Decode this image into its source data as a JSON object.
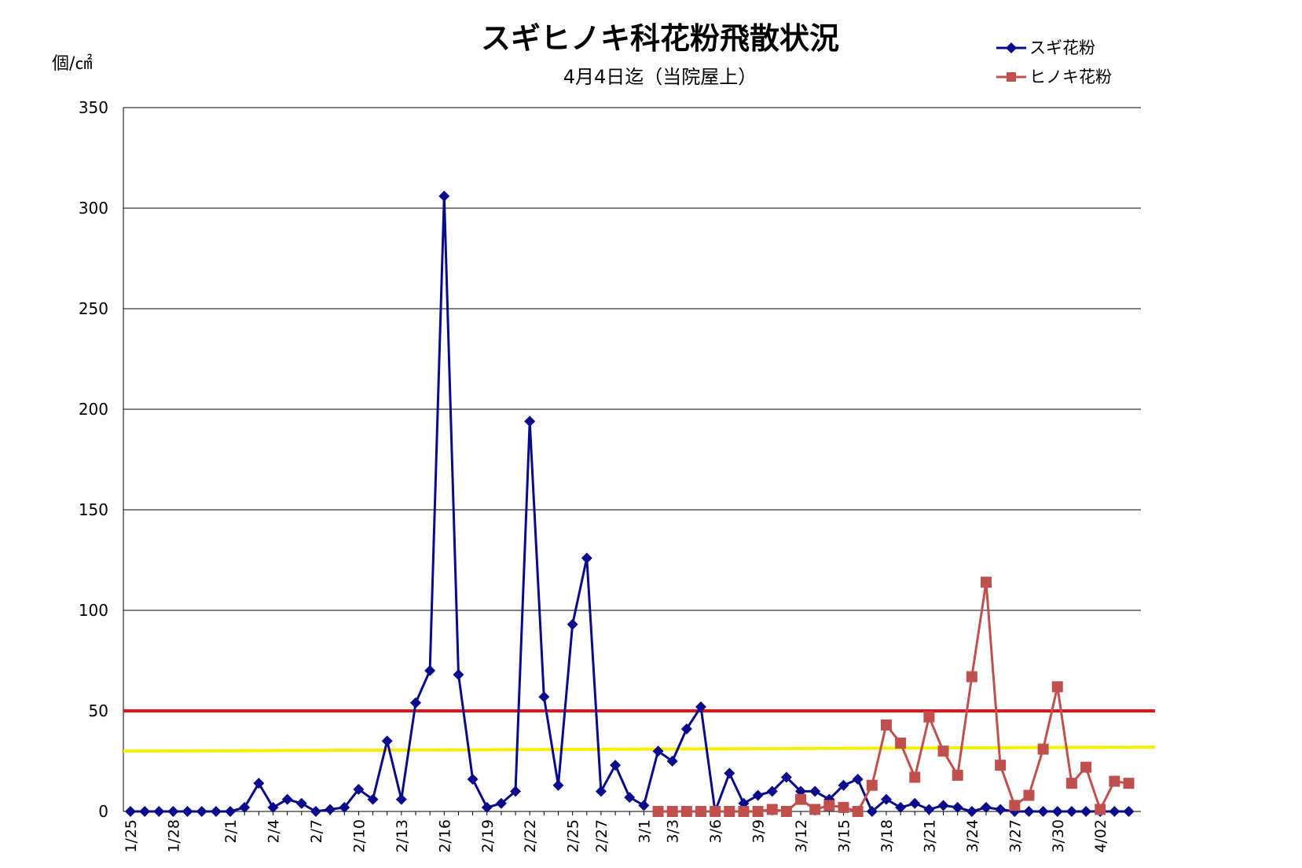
{
  "chart_data": {
    "type": "line",
    "title": "スギヒノキ科花粉飛散状況",
    "subtitle": "4月4日迄（当院屋上）",
    "ylabel": "個/㎠",
    "xlabel": "",
    "ylim": [
      0,
      350
    ],
    "yticks": [
      0,
      50,
      100,
      150,
      200,
      250,
      300,
      350
    ],
    "grid": true,
    "legend_position": "top-right",
    "x_labels": [
      "1/25",
      "1/28",
      "2/1",
      "2/4",
      "2/7",
      "2/10",
      "2/13",
      "2/16",
      "2/19",
      "2/22",
      "2/25",
      "2/27",
      "3/1",
      "3/3",
      "3/6",
      "3/9",
      "3/12",
      "3/15",
      "3/18",
      "3/21",
      "3/24",
      "3/27",
      "3/30",
      "4/02"
    ],
    "x_label_index": [
      0,
      3,
      7,
      10,
      13,
      16,
      19,
      22,
      25,
      28,
      31,
      33,
      36,
      38,
      41,
      44,
      47,
      50,
      53,
      56,
      59,
      62,
      65,
      68
    ],
    "n_points": 71,
    "series": [
      {
        "name": "スギ花粉",
        "color": "#0a0a8c",
        "marker": "diamond",
        "start_index": 0,
        "values": [
          0,
          0,
          0,
          0,
          0,
          0,
          0,
          0,
          2,
          14,
          2,
          6,
          4,
          0,
          1,
          2,
          11,
          6,
          35,
          6,
          54,
          70,
          306,
          68,
          16,
          2,
          4,
          10,
          194,
          57,
          13,
          93,
          126,
          10,
          23,
          7,
          3,
          30,
          25,
          41,
          52,
          0,
          19,
          4,
          8,
          10,
          17,
          10,
          10,
          6,
          13,
          16,
          0,
          6,
          2,
          4,
          1,
          3,
          2,
          0,
          2,
          1,
          0,
          0,
          0,
          0,
          0,
          0,
          0,
          0,
          0
        ]
      },
      {
        "name": "ヒノキ花粉",
        "color": "#c0504d",
        "marker": "square",
        "start_index": 37,
        "values": [
          0,
          0,
          0,
          0,
          0,
          0,
          0,
          0,
          1,
          0,
          6,
          1,
          3,
          2,
          0,
          13,
          43,
          34,
          17,
          47,
          30,
          18,
          67,
          114,
          23,
          3,
          8,
          31,
          62,
          14,
          22,
          1,
          15,
          14
        ]
      }
    ],
    "reference_lines": [
      {
        "value": 50,
        "color": "#e0141e"
      },
      {
        "value": 30,
        "value_end": 32,
        "color": "#f5f000"
      }
    ]
  }
}
